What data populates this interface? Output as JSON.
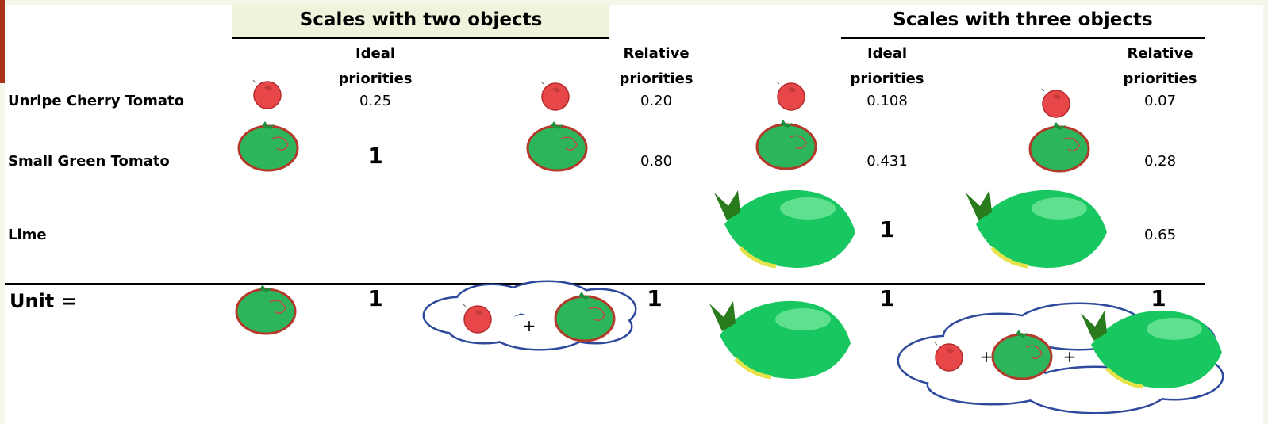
{
  "headers": {
    "two_objects": "Scales with two objects",
    "three_objects": "Scales with three objects"
  },
  "columns": [
    "Ideal priorities",
    "Relative priorities",
    "Ideal priorities",
    "Relative priorities"
  ],
  "rows": [
    {
      "label": "Unripe Cherry Tomato",
      "values": [
        "0.25",
        "0.20",
        "0.108",
        "0.07"
      ]
    },
    {
      "label": "Small Green Tomato",
      "values": [
        "1",
        "0.80",
        "0.431",
        "0.28"
      ]
    },
    {
      "label": "Lime",
      "values": [
        null,
        null,
        "1",
        "0.65"
      ]
    }
  ],
  "unit": {
    "label": "Unit =",
    "values": [
      "1",
      "1",
      "1",
      "1"
    ],
    "plus_signs": [
      "+",
      "+",
      "+"
    ]
  }
}
